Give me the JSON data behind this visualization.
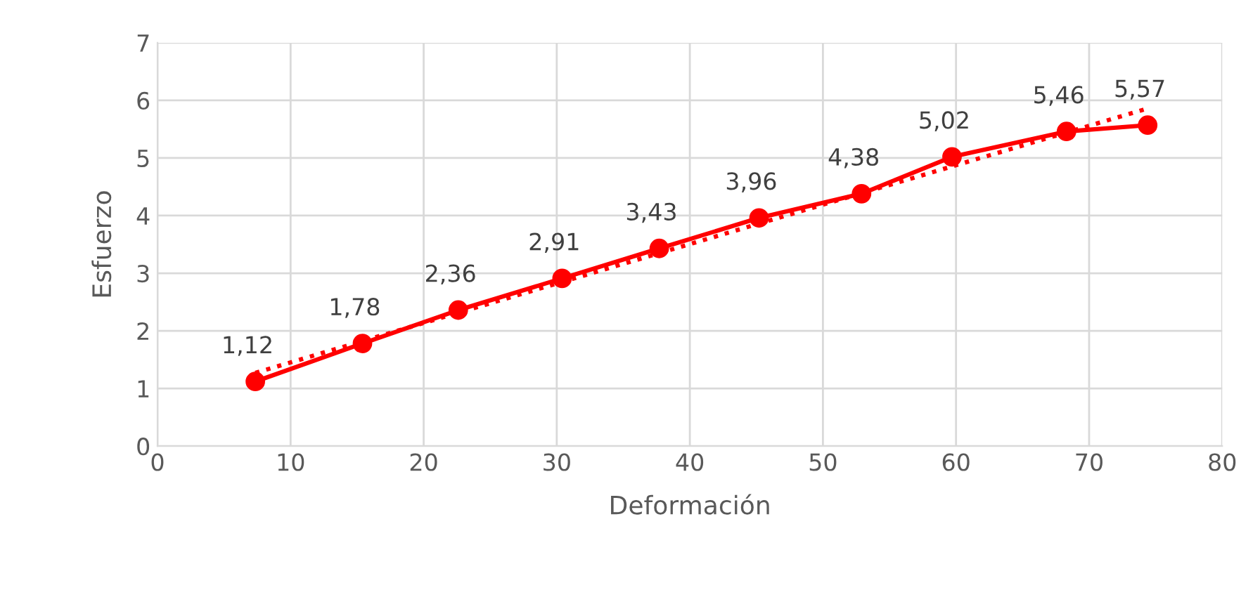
{
  "chart_data": {
    "type": "line",
    "xlabel": "Deformación",
    "ylabel": "Esfuerzo",
    "xlim": [
      0,
      80
    ],
    "xticks": [
      0,
      10,
      20,
      30,
      40,
      50,
      60,
      70,
      80
    ],
    "ylim": [
      0,
      7
    ],
    "yticks": [
      0,
      1,
      2,
      3,
      4,
      5,
      6,
      7
    ],
    "grid": true,
    "legend": false,
    "series": [
      {
        "color": "#ff0000",
        "marker": "circle",
        "line_style": "solid",
        "x": [
          7.35,
          15.4,
          22.6,
          30.4,
          37.7,
          45.2,
          52.9,
          59.7,
          68.3,
          74.4
        ],
        "values": [
          1.12,
          1.78,
          2.36,
          2.91,
          3.43,
          3.96,
          4.38,
          5.02,
          5.46,
          5.57
        ],
        "value_labels": [
          "1,12",
          "1,78",
          "2,36",
          "2,91",
          "3,43",
          "3,96",
          "4,38",
          "5,02",
          "5,46",
          "5,57"
        ]
      },
      {
        "type": "line",
        "color": "#ff0000",
        "marker": "none",
        "line_style": "dotted",
        "x": [
          7.35,
          74.4
        ],
        "values": [
          1.27,
          5.86
        ]
      }
    ]
  }
}
